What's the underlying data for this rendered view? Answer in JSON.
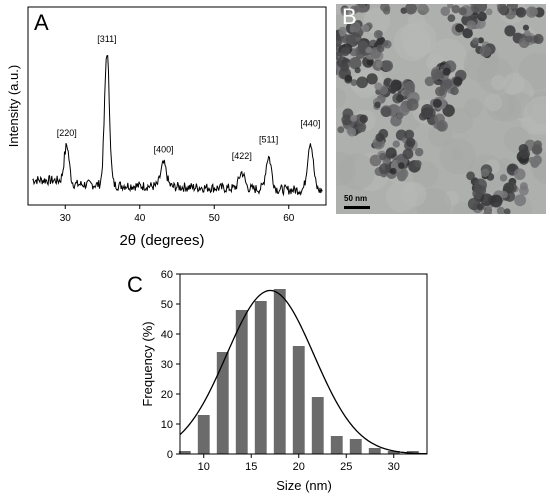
{
  "panels": {
    "a_label": "A",
    "b_label": "B",
    "c_label": "C"
  },
  "tem": {
    "scale_label": "50 nm"
  },
  "chart_data": [
    {
      "type": "line",
      "panel": "A",
      "xlabel": "2θ (degrees)",
      "ylabel": "Intensity (a.u.)",
      "xlim": [
        25,
        65
      ],
      "x_ticks": [
        30,
        40,
        50,
        60
      ],
      "y_ticks_shown": false,
      "baseline": 0.18,
      "peaks": [
        {
          "x": 30.2,
          "intensity": 0.42,
          "label": "[220]"
        },
        {
          "x": 35.6,
          "intensity": 1.0,
          "label": "[311]"
        },
        {
          "x": 43.2,
          "intensity": 0.32,
          "label": "[400]"
        },
        {
          "x": 53.7,
          "intensity": 0.28,
          "label": "[422]"
        },
        {
          "x": 57.3,
          "intensity": 0.38,
          "label": "[511]"
        },
        {
          "x": 62.9,
          "intensity": 0.48,
          "label": "[440]"
        }
      ]
    },
    {
      "type": "bar",
      "panel": "C",
      "xlabel": "Size (nm)",
      "ylabel": "Frequency (%)",
      "xlim": [
        7.5,
        33.5
      ],
      "ylim": [
        0,
        60
      ],
      "x_ticks": [
        10,
        15,
        20,
        25,
        30
      ],
      "y_ticks": [
        0,
        10,
        20,
        30,
        40,
        50,
        60
      ],
      "x": [
        8,
        10,
        12,
        14,
        16,
        18,
        20,
        22,
        24,
        26,
        28,
        30,
        32
      ],
      "values": [
        1,
        13,
        34,
        48,
        51,
        55,
        36,
        19,
        6,
        5,
        2,
        1,
        1
      ],
      "fit": {
        "type": "gaussian",
        "center": 17,
        "amplitude": 54.5,
        "sigma": 4.6
      }
    }
  ]
}
